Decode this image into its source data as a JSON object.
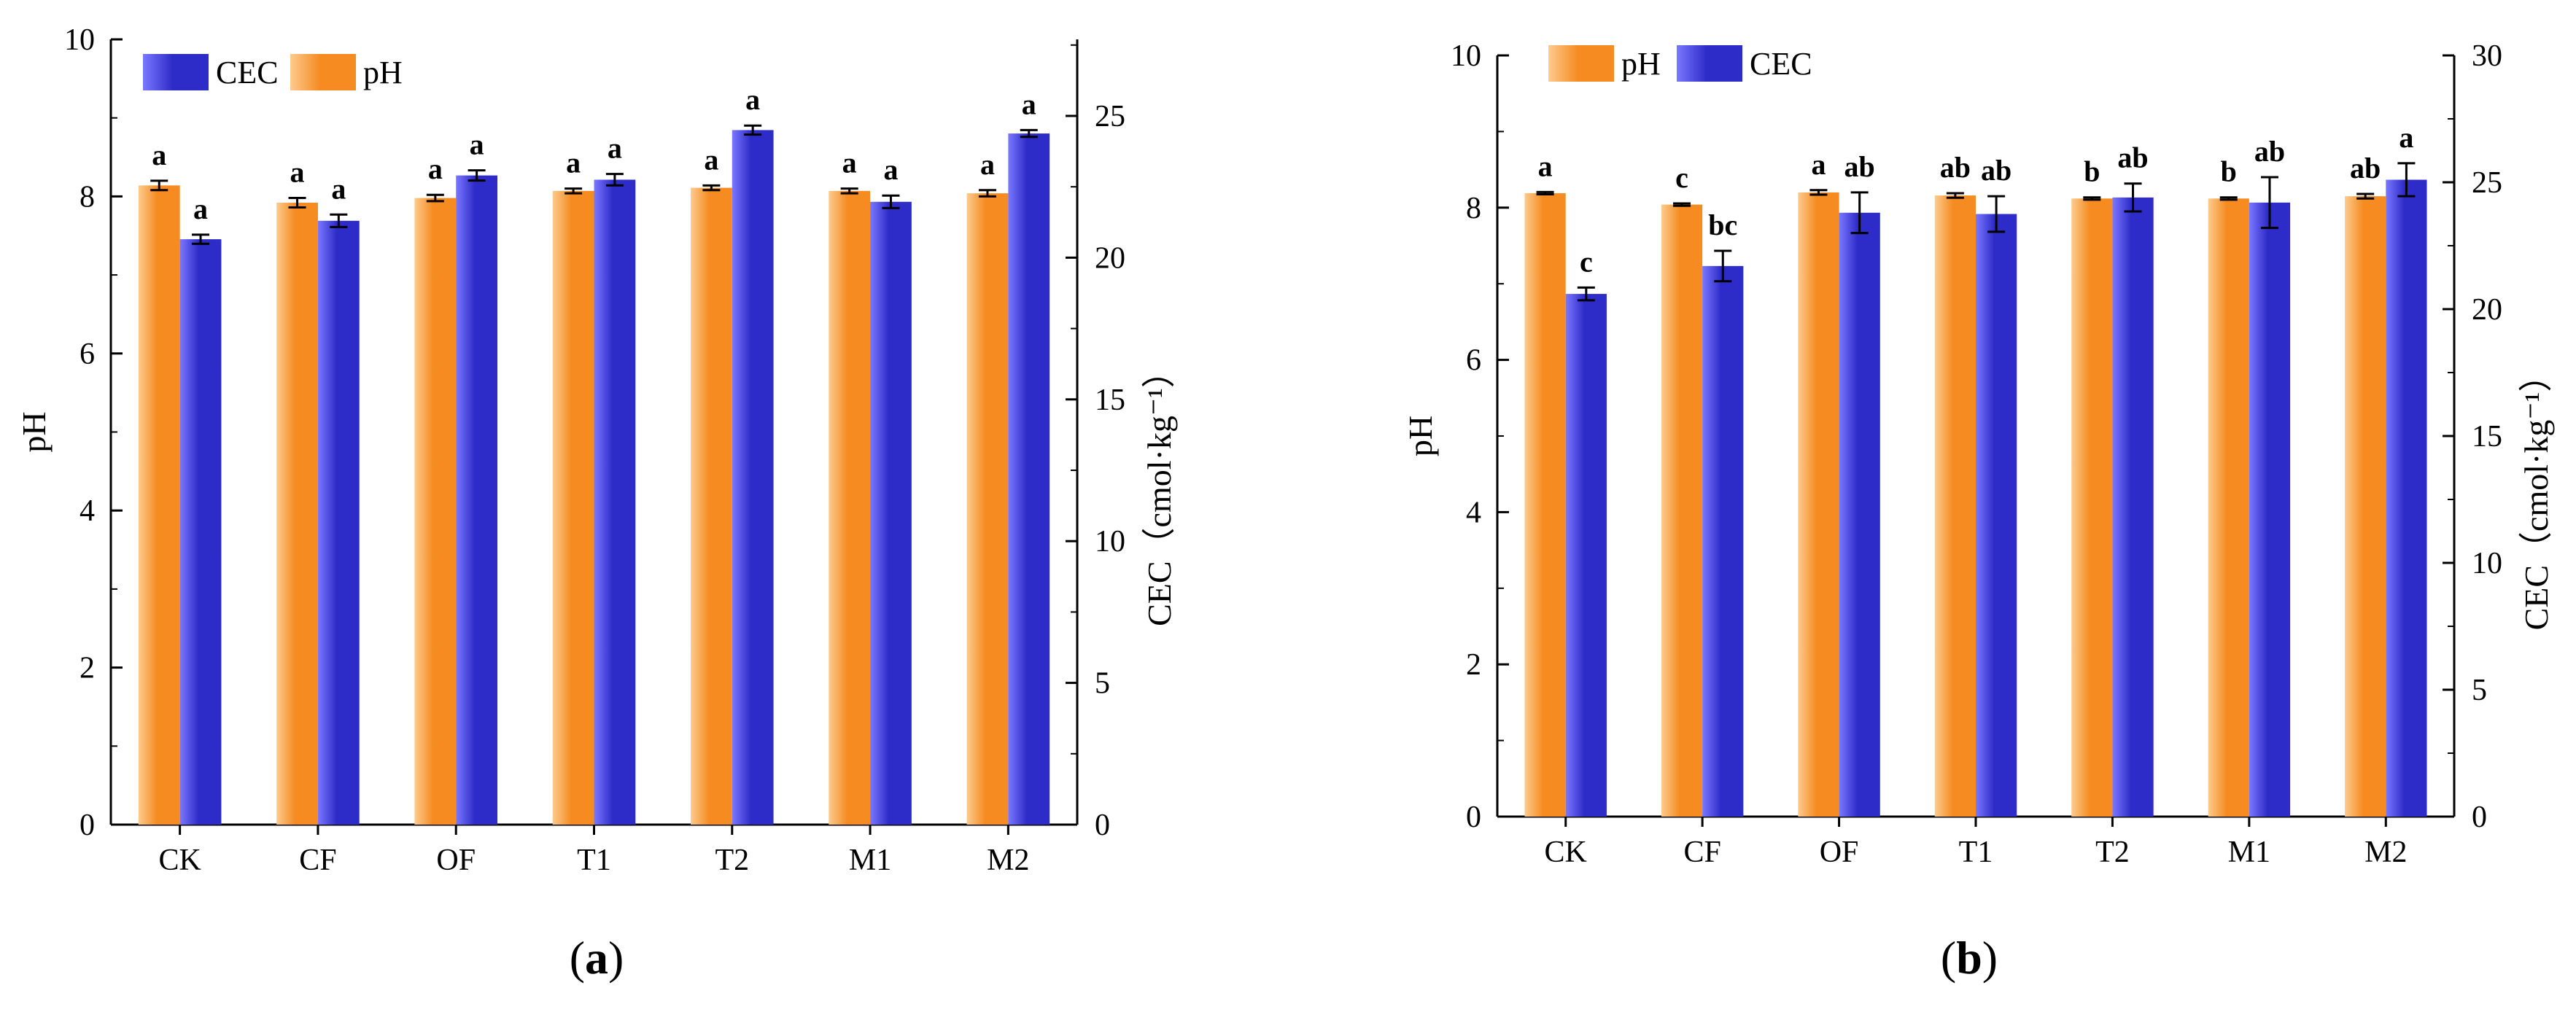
{
  "colors": {
    "ph": "#F58B21",
    "ph_highlight": "#FCCB8E",
    "cec": "#2E2CC8",
    "cec_highlight": "#7A78FF",
    "axis": "#000000"
  },
  "chart_data": [
    {
      "type": "bar",
      "panel_label": {
        "open": "(",
        "letter": "a",
        "close": ")"
      },
      "categories": [
        "CK",
        "CF",
        "OF",
        "T1",
        "T2",
        "M1",
        "M2"
      ],
      "bar_order": [
        "pH",
        "CEC"
      ],
      "legend": {
        "entries": [
          "CEC",
          "pH"
        ],
        "placement": "top-left"
      },
      "ylabel": "pH",
      "y2label": "CEC（cmol·kg⁻¹）",
      "ylim": [
        0,
        10
      ],
      "y2lim": [
        0,
        27.7
      ],
      "yticks": [
        0,
        2,
        4,
        6,
        8,
        10
      ],
      "y2ticks": [
        0,
        5,
        10,
        15,
        20,
        25
      ],
      "series": [
        {
          "name": "pH",
          "axis": "left",
          "values": [
            8.14,
            7.92,
            7.98,
            8.07,
            8.11,
            8.07,
            8.04
          ],
          "errors": [
            0.06,
            0.06,
            0.04,
            0.03,
            0.03,
            0.03,
            0.04
          ],
          "significance": [
            "a",
            "a",
            "a",
            "a",
            "a",
            "a",
            "a"
          ]
        },
        {
          "name": "CEC",
          "axis": "right",
          "values": [
            20.65,
            21.3,
            22.9,
            22.75,
            24.5,
            21.97,
            24.38
          ],
          "errors": [
            0.16,
            0.22,
            0.18,
            0.2,
            0.16,
            0.22,
            0.12
          ],
          "significance": [
            "a",
            "a",
            "a",
            "a",
            "a",
            "a",
            "a"
          ]
        }
      ]
    },
    {
      "type": "bar",
      "panel_label": {
        "open": "(",
        "letter": "b",
        "close": ")"
      },
      "categories": [
        "CK",
        "CF",
        "OF",
        "T1",
        "T2",
        "M1",
        "M2"
      ],
      "bar_order": [
        "pH",
        "CEC"
      ],
      "legend": {
        "entries": [
          "pH",
          "CEC"
        ],
        "placement": "top-left"
      },
      "ylabel": "pH",
      "y2label": "CEC（cmol·kg⁻¹）",
      "ylim": [
        0,
        10
      ],
      "y2lim": [
        0,
        30
      ],
      "yticks": [
        0,
        2,
        4,
        6,
        8,
        10
      ],
      "y2ticks": [
        0,
        5,
        10,
        15,
        20,
        25,
        30
      ],
      "series": [
        {
          "name": "pH",
          "axis": "left",
          "values": [
            8.19,
            8.04,
            8.2,
            8.16,
            8.12,
            8.12,
            8.15
          ],
          "errors": [
            0.015,
            0.015,
            0.03,
            0.03,
            0.015,
            0.015,
            0.03
          ],
          "significance": [
            "a",
            "c",
            "a",
            "ab",
            "b",
            "b",
            "ab"
          ]
        },
        {
          "name": "CEC",
          "axis": "right",
          "values": [
            20.6,
            21.7,
            23.8,
            23.75,
            24.4,
            24.2,
            25.1
          ],
          "errors": [
            0.25,
            0.6,
            0.8,
            0.7,
            0.55,
            1.0,
            0.65
          ],
          "significance": [
            "c",
            "bc",
            "ab",
            "ab",
            "ab",
            "ab",
            "a"
          ]
        }
      ]
    }
  ]
}
